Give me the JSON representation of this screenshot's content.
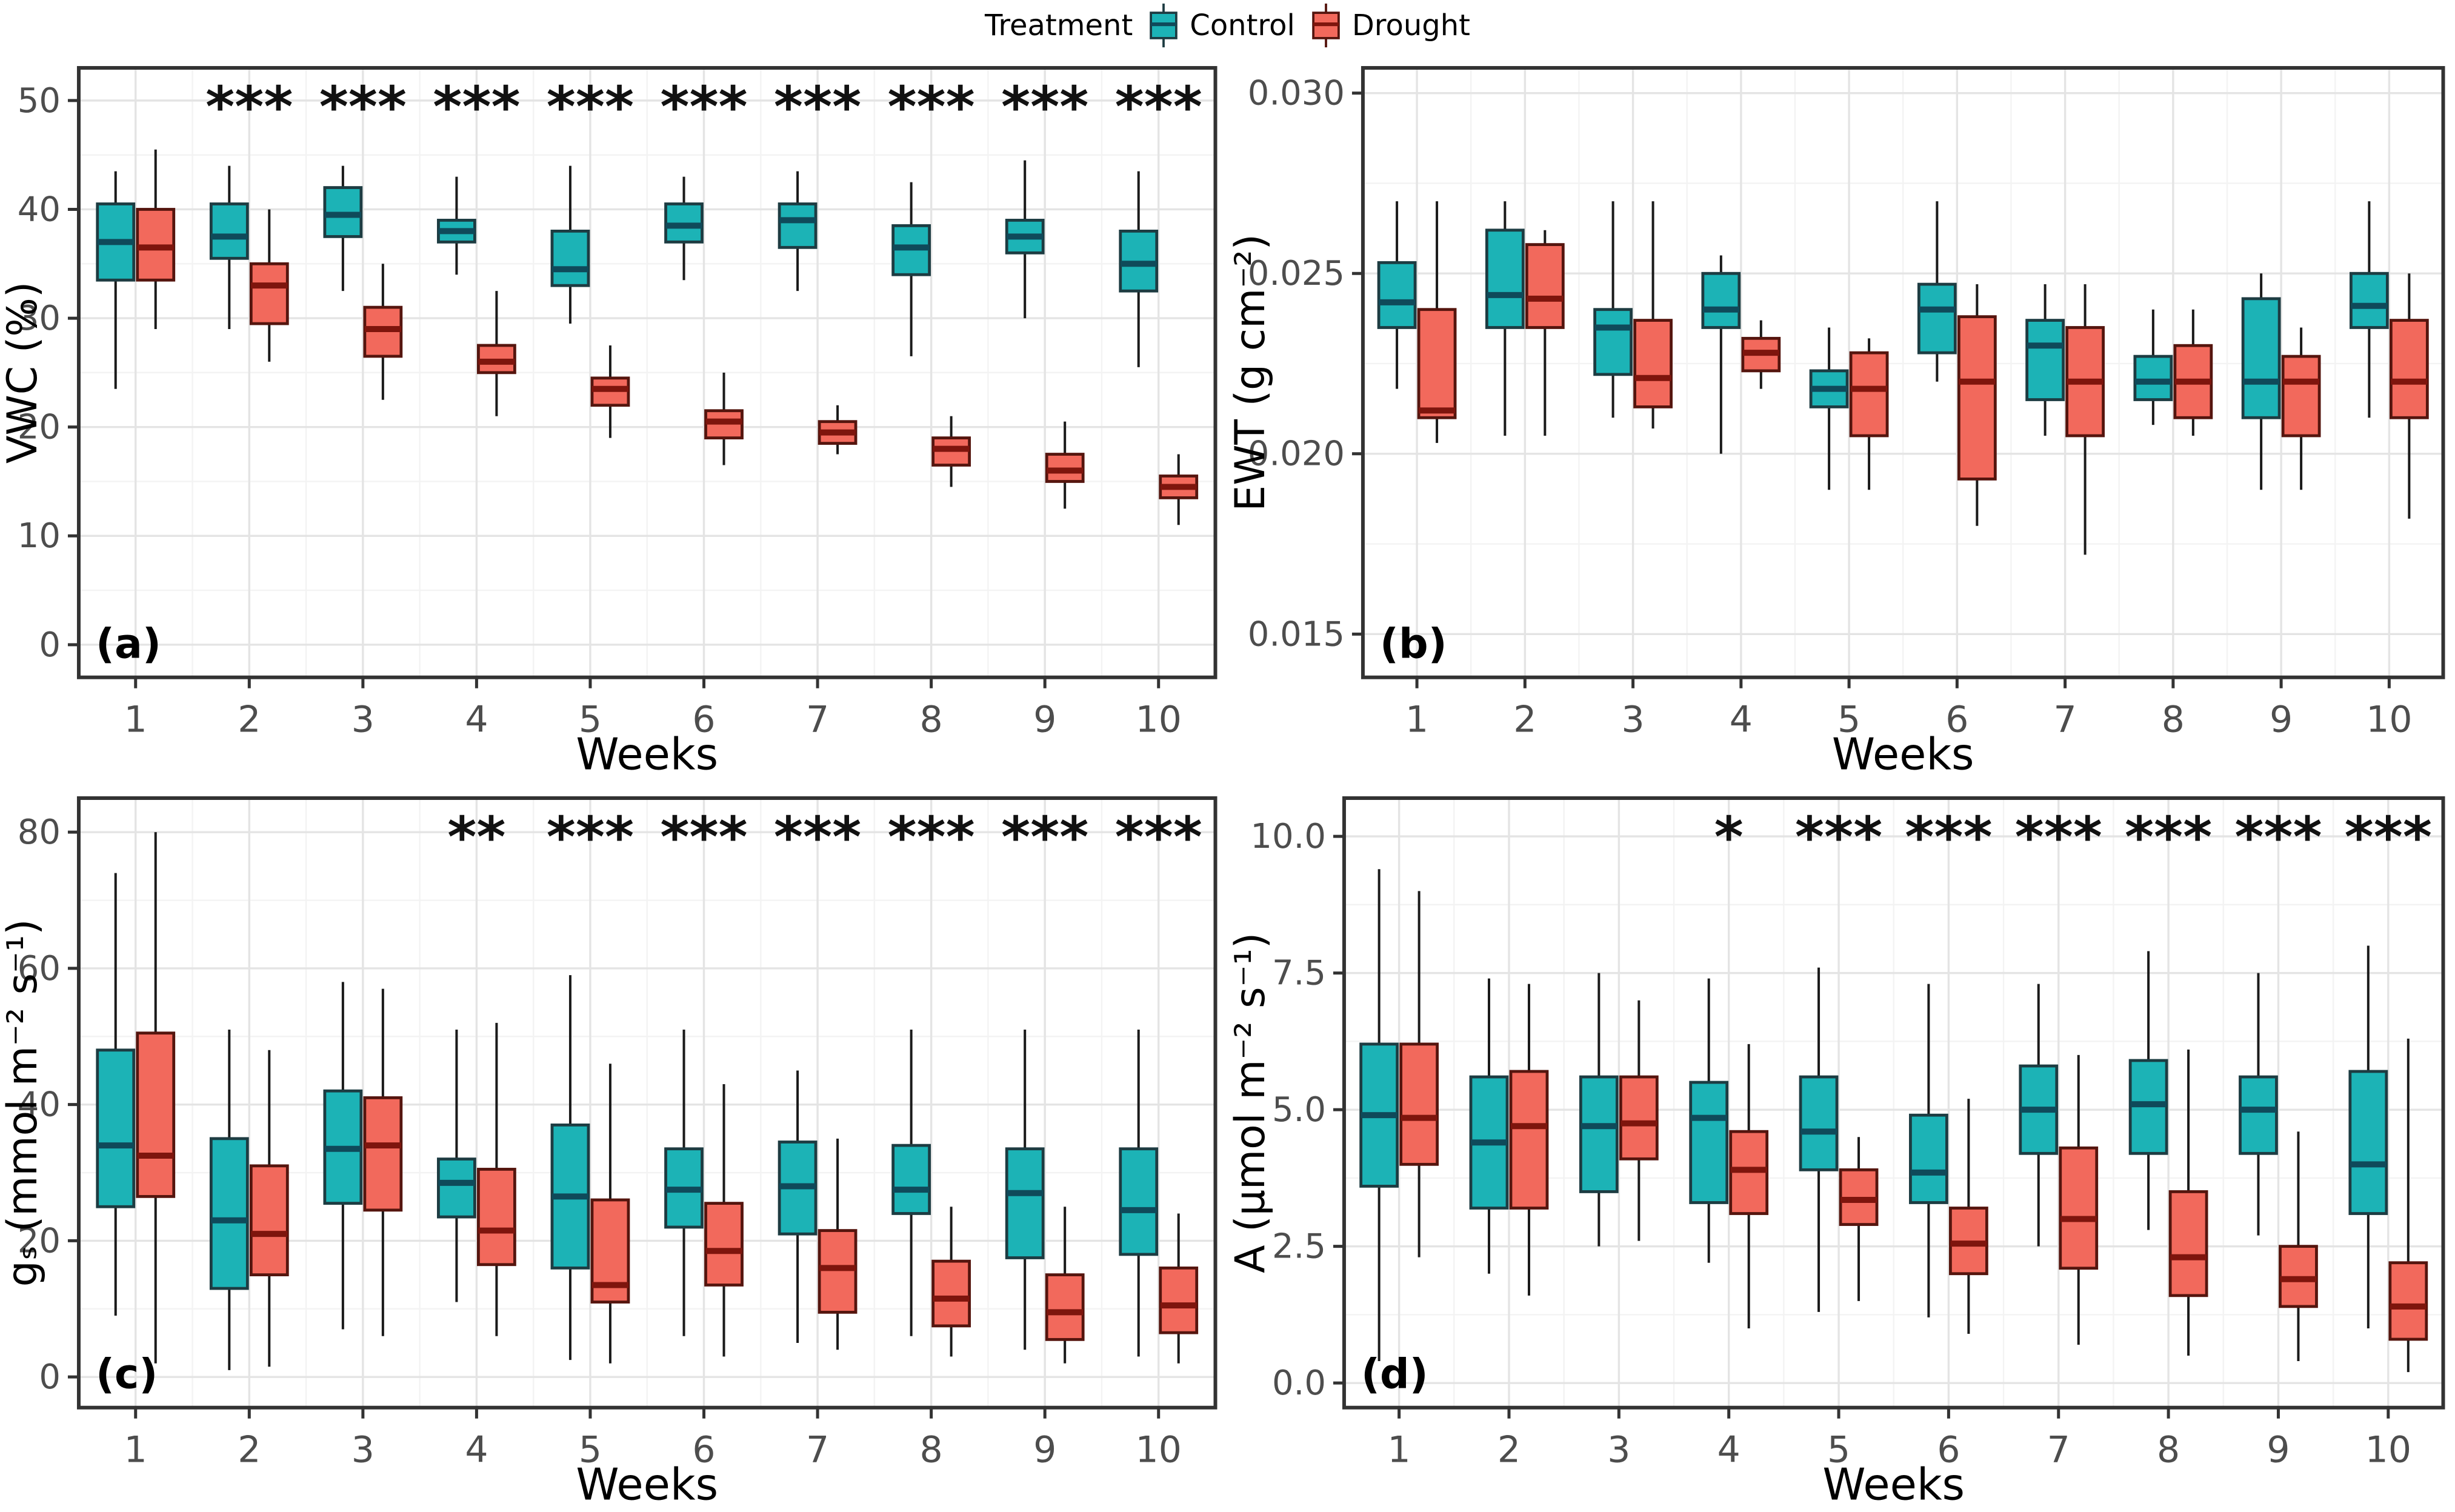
{
  "legend": {
    "title": "Treatment",
    "items": [
      {
        "label": "Control",
        "fill": "#1cb3b6",
        "stroke": "#1d3c42",
        "median": "#0f4a5a"
      },
      {
        "label": "Drought",
        "fill": "#f2695c",
        "stroke": "#55150e",
        "median": "#7e150d"
      }
    ]
  },
  "axis_style": {
    "tick_text_color": "#4d4d4d",
    "axis_color": "#333333",
    "grid_major": "#e4e4e4",
    "grid_minor": "#f3f3f3",
    "star_color": "#111111"
  },
  "chart_data": [
    {
      "type": "boxplot",
      "panel": "a",
      "label": "(a)",
      "ylabel": "VWC (%)",
      "xlabel": "Weeks",
      "ylim": [
        -3,
        53
      ],
      "yticks": [
        0,
        10,
        20,
        30,
        40,
        50
      ],
      "ytick_labels": [
        "0",
        "10",
        "20",
        "30",
        "40",
        "50"
      ],
      "categories": [
        "1",
        "2",
        "3",
        "4",
        "5",
        "6",
        "7",
        "8",
        "9",
        "10"
      ],
      "significance": [
        "",
        "***",
        "***",
        "***",
        "***",
        "***",
        "***",
        "***",
        "***",
        "***"
      ],
      "box_format": "[whisker_low, q1, median, q3, whisker_high]",
      "series": [
        {
          "name": "Control",
          "boxes": [
            [
              23.5,
              33.5,
              37,
              40.5,
              43.5
            ],
            [
              29,
              35.5,
              37.5,
              40.5,
              44
            ],
            [
              32.5,
              37.5,
              39.5,
              42,
              44
            ],
            [
              34,
              37,
              38,
              39,
              43
            ],
            [
              29.5,
              33,
              34.5,
              38,
              44
            ],
            [
              33.5,
              37,
              38.5,
              40.5,
              43
            ],
            [
              32.5,
              36.5,
              39,
              40.5,
              43.5
            ],
            [
              26.5,
              34,
              36.5,
              38.5,
              42.5
            ],
            [
              30,
              36,
              37.5,
              39,
              44.5
            ],
            [
              25.5,
              32.5,
              35,
              38,
              43.5
            ]
          ]
        },
        {
          "name": "Drought",
          "boxes": [
            [
              29,
              33.5,
              36.5,
              40,
              45.5
            ],
            [
              26,
              29.5,
              33,
              35,
              40
            ],
            [
              22.5,
              26.5,
              29,
              31,
              35
            ],
            [
              21,
              25,
              26,
              27.5,
              32.5
            ],
            [
              19,
              22,
              23.5,
              24.5,
              27.5
            ],
            [
              16.5,
              19,
              20.5,
              21.5,
              25
            ],
            [
              17.5,
              18.5,
              19.5,
              20.5,
              22
            ],
            [
              14.5,
              16.5,
              18,
              19,
              21
            ],
            [
              12.5,
              15,
              16,
              17.5,
              20.5
            ],
            [
              11,
              13.5,
              14.5,
              15.5,
              17.5
            ]
          ]
        }
      ]
    },
    {
      "type": "boxplot",
      "panel": "b",
      "label": "(b)",
      "ylabel": "EWT (g cm⁻²)",
      "xlabel": "Weeks",
      "ylim": [
        0.0138,
        0.0307
      ],
      "yticks": [
        0.015,
        0.02,
        0.025,
        0.03
      ],
      "ytick_labels": [
        "0.015",
        "0.020",
        "0.025",
        "0.030"
      ],
      "categories": [
        "1",
        "2",
        "3",
        "4",
        "5",
        "6",
        "7",
        "8",
        "9",
        "10"
      ],
      "significance": [
        "",
        "",
        "",
        "",
        "",
        "",
        "",
        "",
        "",
        ""
      ],
      "box_format": "[whisker_low, q1, median, q3, whisker_high]",
      "series": [
        {
          "name": "Control",
          "boxes": [
            [
              0.0218,
              0.0235,
              0.0242,
              0.0253,
              0.027
            ],
            [
              0.0205,
              0.0235,
              0.0244,
              0.0262,
              0.027
            ],
            [
              0.021,
              0.0222,
              0.0235,
              0.024,
              0.027
            ],
            [
              0.02,
              0.0235,
              0.024,
              0.025,
              0.0255
            ],
            [
              0.019,
              0.0213,
              0.0218,
              0.0223,
              0.0235
            ],
            [
              0.022,
              0.0228,
              0.024,
              0.0247,
              0.027
            ],
            [
              0.0205,
              0.0215,
              0.023,
              0.0237,
              0.0247
            ],
            [
              0.0208,
              0.0215,
              0.022,
              0.0227,
              0.024
            ],
            [
              0.019,
              0.021,
              0.022,
              0.0243,
              0.025
            ],
            [
              0.021,
              0.0235,
              0.0241,
              0.025,
              0.027
            ]
          ]
        },
        {
          "name": "Drought",
          "boxes": [
            [
              0.0203,
              0.021,
              0.0212,
              0.024,
              0.027
            ],
            [
              0.0205,
              0.0235,
              0.0243,
              0.0258,
              0.0262
            ],
            [
              0.0207,
              0.0213,
              0.0221,
              0.0237,
              0.027
            ],
            [
              0.0218,
              0.0223,
              0.0228,
              0.0232,
              0.0237
            ],
            [
              0.019,
              0.0205,
              0.0218,
              0.0228,
              0.0232
            ],
            [
              0.018,
              0.0193,
              0.022,
              0.0238,
              0.0247
            ],
            [
              0.0172,
              0.0205,
              0.022,
              0.0235,
              0.0247
            ],
            [
              0.0205,
              0.021,
              0.022,
              0.023,
              0.024
            ],
            [
              0.019,
              0.0205,
              0.022,
              0.0227,
              0.0235
            ],
            [
              0.0182,
              0.021,
              0.022,
              0.0237,
              0.025
            ]
          ]
        }
      ]
    },
    {
      "type": "boxplot",
      "panel": "c",
      "label": "(c)",
      "ylabel": "gₛ (mmol m⁻² s⁻¹)",
      "xlabel": "Weeks",
      "ylim": [
        -4.5,
        85
      ],
      "yticks": [
        0,
        20,
        40,
        60,
        80
      ],
      "ytick_labels": [
        "0",
        "20",
        "40",
        "60",
        "80"
      ],
      "categories": [
        "1",
        "2",
        "3",
        "4",
        "5",
        "6",
        "7",
        "8",
        "9",
        "10"
      ],
      "significance": [
        "",
        "",
        "",
        "**",
        "***",
        "***",
        "***",
        "***",
        "***",
        "***"
      ],
      "box_format": "[whisker_low, q1, median, q3, whisker_high]",
      "series": [
        {
          "name": "Control",
          "boxes": [
            [
              9,
              25,
              34,
              48,
              74
            ],
            [
              1,
              13,
              23,
              35,
              51
            ],
            [
              7,
              25.5,
              33.5,
              42,
              58
            ],
            [
              11,
              23.5,
              28.5,
              32,
              51
            ],
            [
              2.5,
              16,
              26.5,
              37,
              59
            ],
            [
              6,
              22,
              27.5,
              33.5,
              51
            ],
            [
              5,
              21,
              28,
              34.5,
              45
            ],
            [
              6,
              24,
              27.5,
              34,
              51
            ],
            [
              4,
              17.5,
              27,
              33.5,
              51
            ],
            [
              3,
              18,
              24.5,
              33.5,
              51
            ]
          ]
        },
        {
          "name": "Drought",
          "boxes": [
            [
              2,
              26.5,
              32.5,
              50.5,
              80
            ],
            [
              1.5,
              15,
              21,
              31,
              48
            ],
            [
              6,
              24.5,
              34,
              41,
              57
            ],
            [
              6,
              16.5,
              21.5,
              30.5,
              52
            ],
            [
              2,
              11,
              13.5,
              26,
              46
            ],
            [
              3,
              13.5,
              18.5,
              25.5,
              43
            ],
            [
              4,
              9.5,
              16,
              21.5,
              35
            ],
            [
              3,
              7.5,
              11.5,
              17,
              25
            ],
            [
              2,
              5.5,
              9.5,
              15,
              25
            ],
            [
              2,
              6.5,
              10.5,
              16,
              24
            ]
          ]
        }
      ]
    },
    {
      "type": "boxplot",
      "panel": "d",
      "label": "(d)",
      "ylabel": "A (µmol m⁻² s⁻¹)",
      "xlabel": "Weeks",
      "ylim": [
        -0.45,
        10.7
      ],
      "yticks": [
        0.0,
        2.5,
        5.0,
        7.5,
        10.0
      ],
      "ytick_labels": [
        "0.0",
        "2.5",
        "5.0",
        "7.5",
        "10.0"
      ],
      "categories": [
        "1",
        "2",
        "3",
        "4",
        "5",
        "6",
        "7",
        "8",
        "9",
        "10"
      ],
      "significance": [
        "",
        "",
        "",
        "*",
        "***",
        "***",
        "***",
        "***",
        "***",
        "***"
      ],
      "box_format": "[whisker_low, q1, median, q3, whisker_high]",
      "series": [
        {
          "name": "Control",
          "boxes": [
            [
              0.4,
              3.6,
              4.9,
              6.2,
              9.4
            ],
            [
              2.0,
              3.2,
              4.4,
              5.6,
              7.4
            ],
            [
              2.5,
              3.5,
              4.7,
              5.6,
              7.5
            ],
            [
              2.2,
              3.3,
              4.85,
              5.5,
              7.4
            ],
            [
              1.3,
              3.9,
              4.6,
              5.6,
              7.6
            ],
            [
              1.2,
              3.3,
              3.85,
              4.9,
              7.3
            ],
            [
              2.5,
              4.2,
              5.0,
              5.8,
              7.3
            ],
            [
              2.8,
              4.2,
              5.1,
              5.9,
              7.9
            ],
            [
              2.7,
              4.2,
              5.0,
              5.6,
              7.5
            ],
            [
              1.0,
              3.1,
              4.0,
              5.7,
              8.0
            ]
          ]
        },
        {
          "name": "Drought",
          "boxes": [
            [
              2.3,
              4.0,
              4.85,
              6.2,
              9.0
            ],
            [
              1.6,
              3.2,
              4.7,
              5.7,
              7.3
            ],
            [
              2.6,
              4.1,
              4.75,
              5.6,
              7.0
            ],
            [
              1.0,
              3.1,
              3.9,
              4.6,
              6.2
            ],
            [
              1.5,
              2.9,
              3.35,
              3.9,
              4.5
            ],
            [
              0.9,
              2.0,
              2.55,
              3.2,
              5.2
            ],
            [
              0.7,
              2.1,
              3.0,
              4.3,
              6.0
            ],
            [
              0.5,
              1.6,
              2.3,
              3.5,
              6.1
            ],
            [
              0.4,
              1.4,
              1.9,
              2.5,
              4.6
            ],
            [
              0.2,
              0.8,
              1.4,
              2.2,
              6.3
            ]
          ]
        }
      ]
    }
  ]
}
